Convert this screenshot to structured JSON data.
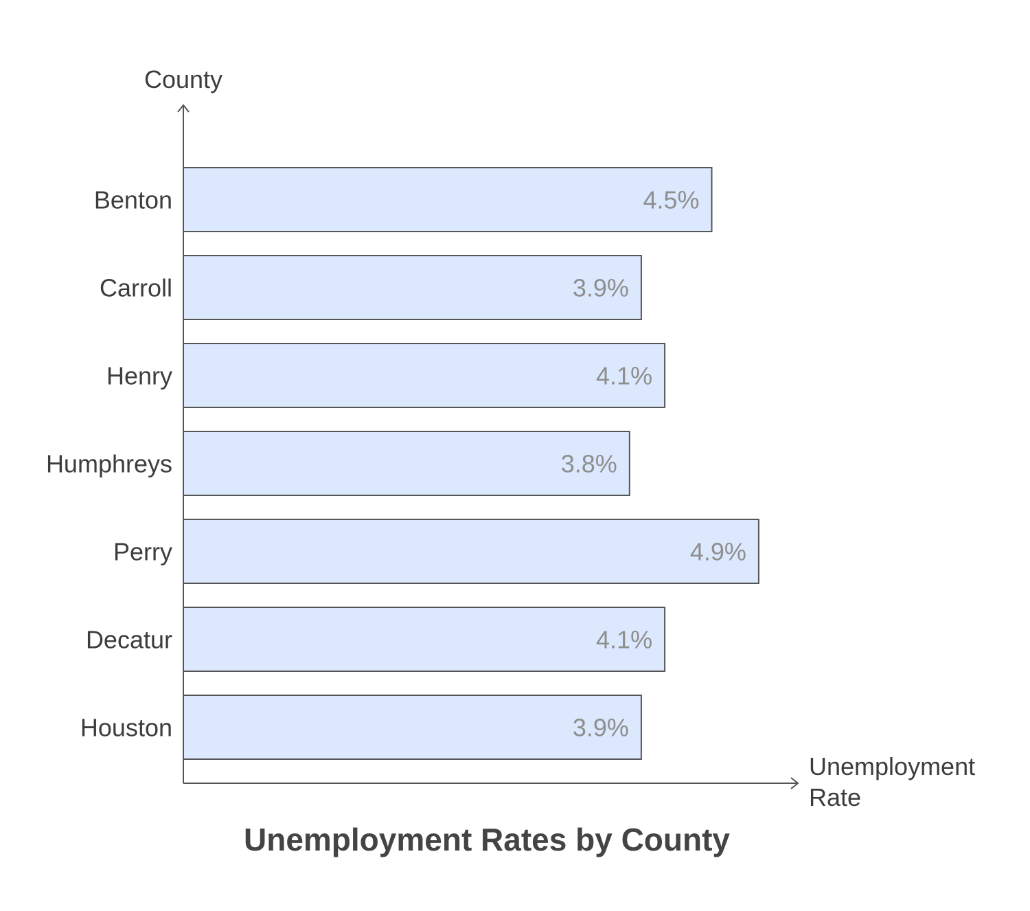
{
  "chart_data": {
    "type": "bar",
    "orientation": "horizontal",
    "title": "Unemployment Rates by County",
    "ylabel": "County",
    "xlabel_lines": [
      "Unemployment",
      "Rate"
    ],
    "categories": [
      "Benton",
      "Carroll",
      "Henry",
      "Humphreys",
      "Perry",
      "Decatur",
      "Houston"
    ],
    "values": [
      4.5,
      3.9,
      4.1,
      3.8,
      4.9,
      4.1,
      3.9
    ],
    "value_labels": [
      "4.5%",
      "3.9%",
      "4.1%",
      "3.8%",
      "4.9%",
      "4.1%",
      "3.9%"
    ],
    "unit": "%",
    "xlim": [
      0,
      5.25
    ],
    "grid": false,
    "legend": "none",
    "colors": {
      "bar_fill": "#dce8fd",
      "bar_stroke": "#555555",
      "axis": "#555555",
      "value_text": "#8e8e8e",
      "label_text": "#3d3d3d"
    }
  }
}
